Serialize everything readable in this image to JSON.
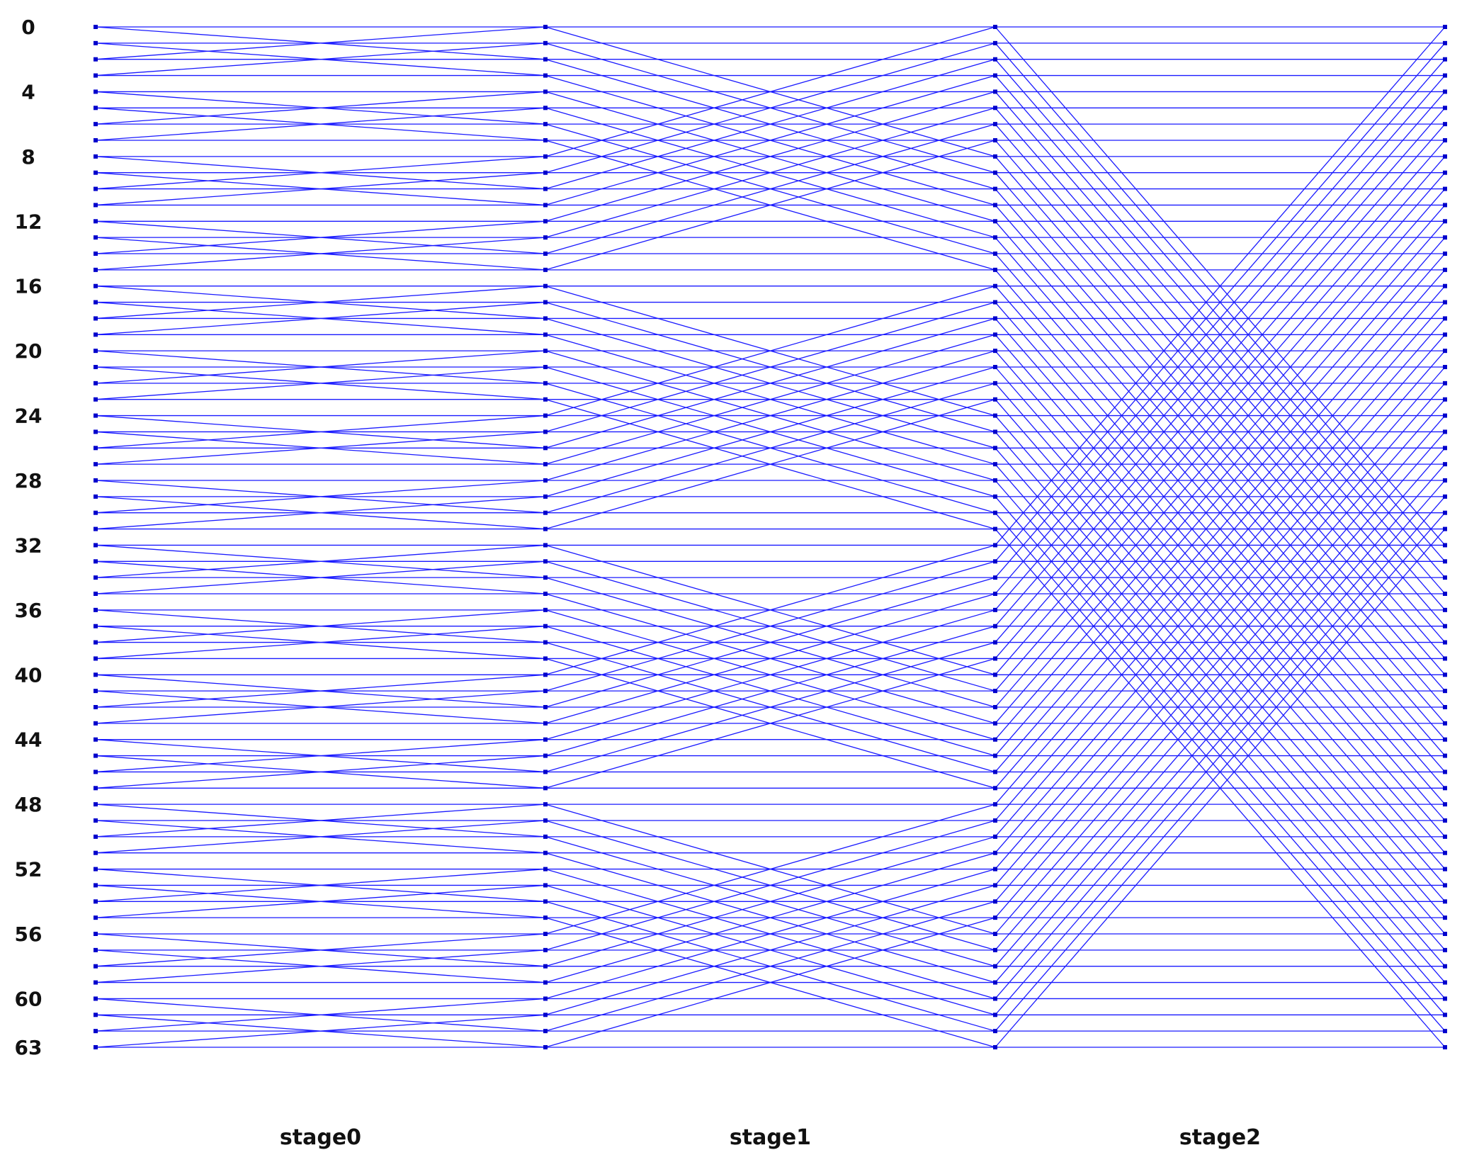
{
  "figure": {
    "row_labels": [
      "0",
      "4",
      "8",
      "12",
      "16",
      "20",
      "24",
      "28",
      "32",
      "36",
      "40",
      "44",
      "48",
      "52",
      "56",
      "60",
      "63"
    ],
    "stage_labels": [
      "stage0",
      "stage1",
      "stage2"
    ],
    "line_color": "#1a1aff",
    "node_color": "#0000cc",
    "node_count": 64
  }
}
